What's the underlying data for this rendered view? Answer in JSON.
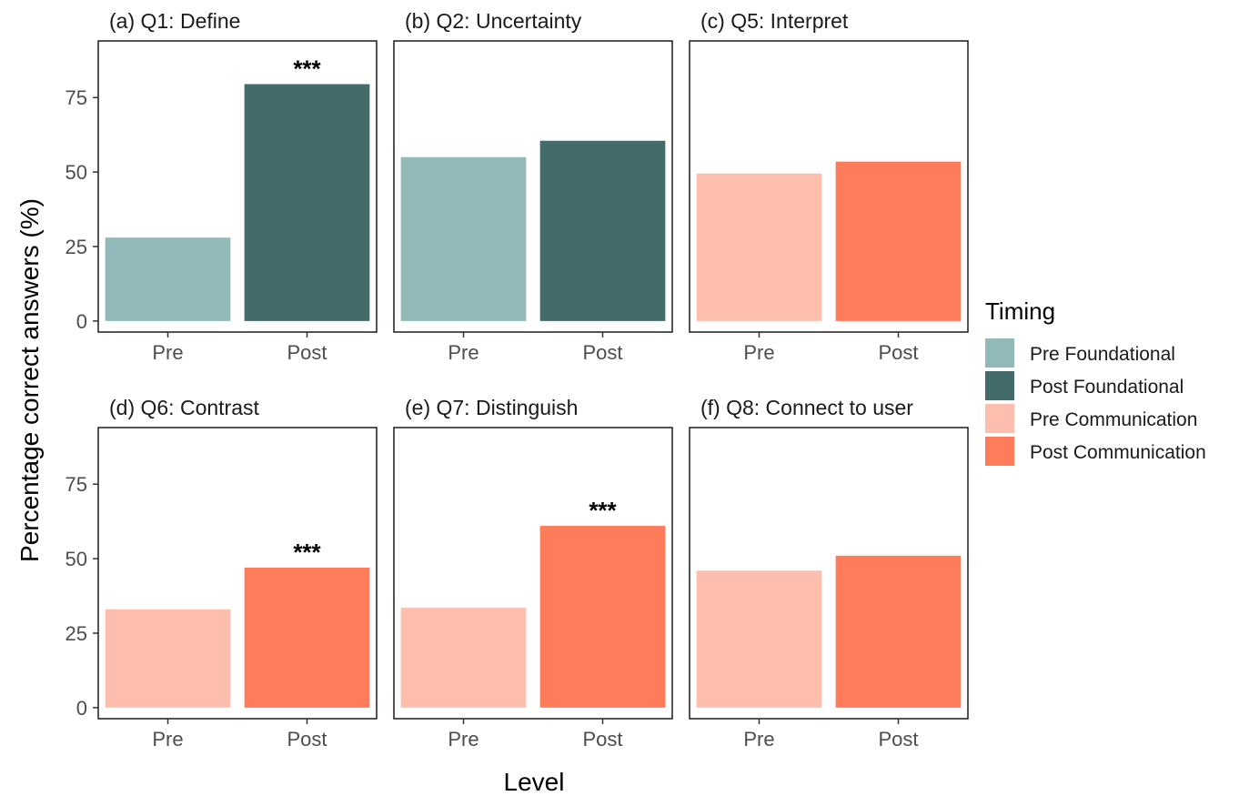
{
  "chart_data": {
    "type": "bar",
    "xlabel": "Level",
    "ylabel": "Percentage correct answers (%)",
    "ylim": [
      -3.7,
      94
    ],
    "yticks": [
      0,
      25,
      50,
      75
    ],
    "grid": false,
    "legend": {
      "title": "Timing",
      "position": "right",
      "entries": [
        {
          "label": "Pre Foundational",
          "color": "#91b9b8"
        },
        {
          "label": "Post Foundational",
          "color": "#436b69"
        },
        {
          "label": "Pre Communication",
          "color": "#fdbeae"
        },
        {
          "label": "Post Communication",
          "color": "#fe7c59"
        }
      ]
    },
    "panels": [
      {
        "title": "(a) Q1: Define",
        "categories": [
          "Pre",
          "Post"
        ],
        "values": [
          28,
          79.5
        ],
        "series": [
          "Pre Foundational",
          "Post Foundational"
        ],
        "annotation": {
          "text": "***",
          "category": "Post"
        }
      },
      {
        "title": "(b) Q2: Uncertainty",
        "categories": [
          "Pre",
          "Post"
        ],
        "values": [
          55,
          60.5
        ],
        "series": [
          "Pre Foundational",
          "Post Foundational"
        ]
      },
      {
        "title": "(c) Q5: Interpret",
        "categories": [
          "Pre",
          "Post"
        ],
        "values": [
          49.5,
          53.5
        ],
        "series": [
          "Pre Communication",
          "Post Communication"
        ]
      },
      {
        "title": "(d) Q6: Contrast",
        "categories": [
          "Pre",
          "Post"
        ],
        "values": [
          33,
          47
        ],
        "series": [
          "Pre Communication",
          "Post Communication"
        ],
        "annotation": {
          "text": "***",
          "category": "Post"
        }
      },
      {
        "title": "(e) Q7: Distinguish",
        "categories": [
          "Pre",
          "Post"
        ],
        "values": [
          33.5,
          61
        ],
        "series": [
          "Pre Communication",
          "Post Communication"
        ],
        "annotation": {
          "text": "***",
          "category": "Post"
        }
      },
      {
        "title": "(f) Q8: Connect to user",
        "categories": [
          "Pre",
          "Post"
        ],
        "values": [
          46,
          51
        ],
        "series": [
          "Pre Communication",
          "Post Communication"
        ]
      }
    ]
  }
}
